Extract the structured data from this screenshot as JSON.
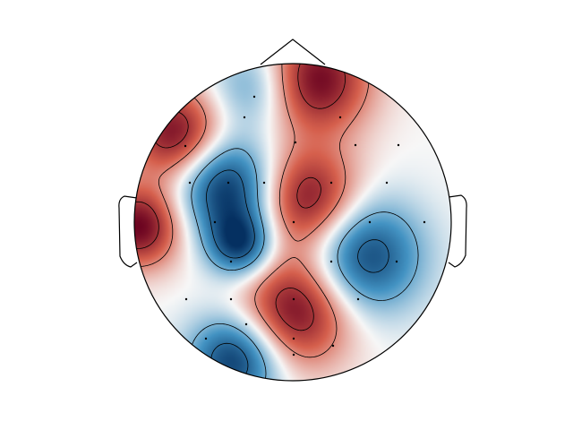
{
  "figure": {
    "kind": "eeg-topomap",
    "colormap": "RdBu_r",
    "colors": {
      "positive_max": "#67001f",
      "positive_mid": "#d6604d",
      "neutral": "#f7f7f7",
      "negative_mid": "#4393c3",
      "negative_max": "#053061",
      "outline": "#000000",
      "sensor": "#000000"
    }
  },
  "chart_data": {
    "type": "heatmap",
    "title": "",
    "xlabel": "",
    "ylabel": "",
    "head_outline": {
      "nose": true,
      "ears": true
    },
    "contours": {
      "shown": true,
      "negative_style": "dashed",
      "positive_style": "solid"
    },
    "sensor_markers": "dots",
    "blobs": [
      {
        "region": "frontal-top",
        "polarity": "positive",
        "strength": 1.0
      },
      {
        "region": "frontal-left",
        "polarity": "positive",
        "strength": 0.95
      },
      {
        "region": "left-temporal",
        "polarity": "positive",
        "strength": 1.0
      },
      {
        "region": "left-frontocentral",
        "polarity": "negative",
        "strength": 1.0
      },
      {
        "region": "left-central",
        "polarity": "negative",
        "strength": 0.95
      },
      {
        "region": "central-midline",
        "polarity": "positive",
        "strength": 0.95
      },
      {
        "region": "right-central",
        "polarity": "negative",
        "strength": 0.95
      },
      {
        "region": "parietal-midline",
        "polarity": "positive",
        "strength": 1.0
      },
      {
        "region": "left-occipital",
        "polarity": "negative",
        "strength": 1.0
      },
      {
        "region": "frontal-midline",
        "polarity": "negative",
        "strength": 0.5
      }
    ]
  }
}
